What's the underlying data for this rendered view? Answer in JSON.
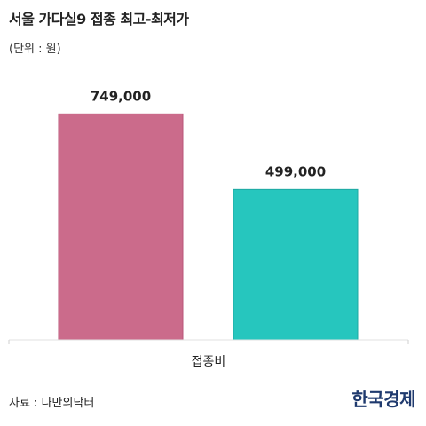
{
  "header": {
    "title": "서울 가다실9 접종 최고-최저가",
    "unit": "(단위 : 원)"
  },
  "footer": {
    "source": "자료 : 나만의닥터",
    "logo_text": "한국경제"
  },
  "chart_data": {
    "type": "bar",
    "categories": [
      "접종비"
    ],
    "series": [
      {
        "values": [
          749000
        ],
        "color": "#cb6b8b",
        "stroke": "#b85578"
      },
      {
        "values": [
          499000
        ],
        "color": "#26c6be",
        "stroke": "#1fa8a1"
      }
    ],
    "data_labels": [
      "749,000",
      "499,000"
    ],
    "ylim": [
      0,
      800000
    ],
    "grid": false,
    "legend": "none",
    "title": "서울 가다실9 접종 최고-최저가",
    "xlabel": "",
    "ylabel": ""
  }
}
